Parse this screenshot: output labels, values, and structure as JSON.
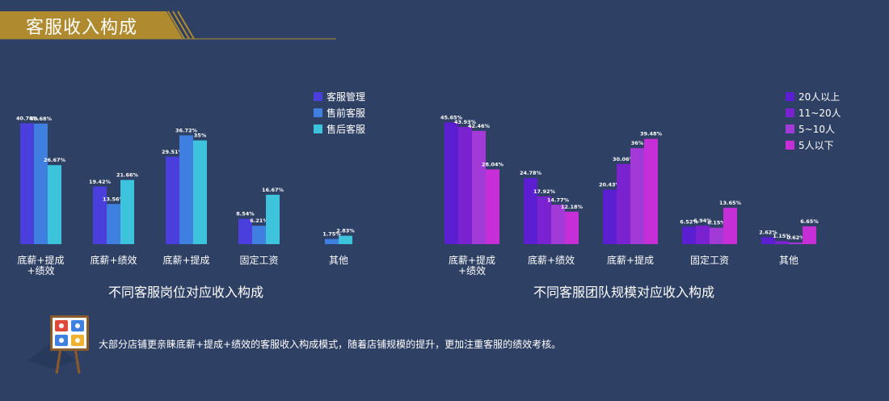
{
  "header": {
    "title": "客服收入构成"
  },
  "colors": {
    "background": "#2e4064",
    "header_gold": "#b08a2e",
    "chart1": [
      "#4a3fdc",
      "#3f7fe0",
      "#3ec3dc"
    ],
    "chart2": [
      "#5b1ed0",
      "#7a22d0",
      "#a23ad8",
      "#c62fd6"
    ]
  },
  "chart_data": [
    {
      "type": "bar",
      "title": "不同客服岗位对应收入构成",
      "categories": [
        "底薪+提成\n+绩效",
        "底薪+绩效",
        "底薪+提成",
        "固定工资",
        "其他"
      ],
      "series": [
        {
          "name": "客服管理",
          "values": [
            40.78,
            19.42,
            29.51,
            8.54,
            null
          ],
          "labels": [
            "40.78%",
            "19.42%",
            "29.51%",
            "8.54%",
            ""
          ]
        },
        {
          "name": "售前客服",
          "values": [
            40.68,
            13.56,
            36.72,
            6.21,
            1.75
          ],
          "labels": [
            "40.68%",
            "13.56%",
            "36.72%",
            "6.21%",
            "1.75%"
          ]
        },
        {
          "name": "售后客服",
          "values": [
            26.67,
            21.66,
            35,
            16.67,
            2.83
          ],
          "labels": [
            "26.67%",
            "21.66%",
            "35%",
            "16.67%",
            "2.83%"
          ]
        }
      ],
      "ylim": [
        0,
        45
      ],
      "legend": "top-right",
      "grid": false
    },
    {
      "type": "bar",
      "title": "不同客服团队规模对应收入构成",
      "categories": [
        "底薪+提成\n+绩效",
        "底薪+绩效",
        "底薪+提成",
        "固定工资",
        "其他"
      ],
      "series": [
        {
          "name": "20人以上",
          "values": [
            45.65,
            24.78,
            20.43,
            6.52,
            2.62
          ],
          "labels": [
            "45.65%",
            "24.78%",
            "20.43%",
            "6.52%",
            "2.62%"
          ]
        },
        {
          "name": "11~20人",
          "values": [
            43.93,
            17.92,
            30.06,
            6.94,
            1.15
          ],
          "labels": [
            "43.93%",
            "17.92%",
            "30.06%",
            "6.94%",
            "1.15%"
          ]
        },
        {
          "name": "5~10人",
          "values": [
            42.46,
            14.77,
            36,
            6.15,
            0.62
          ],
          "labels": [
            "42.46%",
            "14.77%",
            "36%",
            "6.15%",
            "0.62%"
          ]
        },
        {
          "name": "5人以下",
          "values": [
            28.04,
            12.18,
            39.48,
            13.65,
            6.65
          ],
          "labels": [
            "28.04%",
            "12.18%",
            "39.48%",
            "13.65%",
            "6.65%"
          ]
        }
      ],
      "ylim": [
        0,
        50
      ],
      "legend": "top-right",
      "grid": false
    }
  ],
  "note": {
    "text": "大部分店铺更亲睐底薪+提成+绩效的客服收入构成模式，随着店铺规模的提升，更加注重客服的绩效考核。",
    "icon": "easel-board-icon"
  }
}
